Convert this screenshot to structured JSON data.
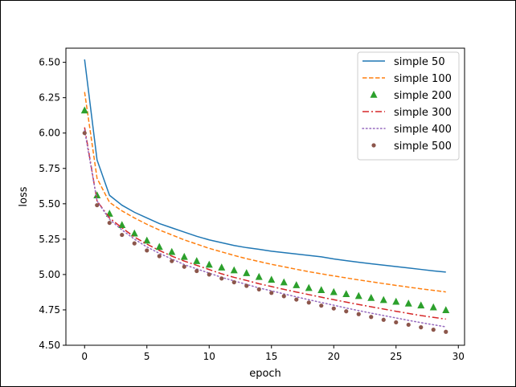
{
  "chart_data": {
    "type": "line",
    "title": "",
    "xlabel": "epoch",
    "ylabel": "loss",
    "xlim": [
      -1.5,
      30.5
    ],
    "ylim": [
      4.5,
      6.6
    ],
    "xticks": [
      0,
      5,
      10,
      15,
      20,
      25,
      30
    ],
    "yticks": [
      4.5,
      4.75,
      5.0,
      5.25,
      5.5,
      5.75,
      6.0,
      6.25,
      6.5
    ],
    "grid": false,
    "legend_placement": "top-right",
    "x": [
      0,
      1,
      2,
      3,
      4,
      5,
      6,
      7,
      8,
      9,
      10,
      11,
      12,
      13,
      14,
      15,
      16,
      17,
      18,
      19,
      20,
      21,
      22,
      23,
      24,
      25,
      26,
      27,
      28,
      29
    ],
    "series": [
      {
        "name": "simple 50",
        "style": "solid",
        "color": "#1f77b4",
        "values": [
          6.52,
          5.81,
          5.56,
          5.49,
          5.44,
          5.4,
          5.36,
          5.33,
          5.3,
          5.27,
          5.245,
          5.225,
          5.205,
          5.19,
          5.178,
          5.165,
          5.155,
          5.145,
          5.135,
          5.125,
          5.11,
          5.098,
          5.087,
          5.076,
          5.066,
          5.056,
          5.046,
          5.036,
          5.026,
          5.017
        ]
      },
      {
        "name": "simple 100",
        "style": "dashed",
        "color": "#ff7f0e",
        "values": [
          6.29,
          5.68,
          5.51,
          5.45,
          5.4,
          5.355,
          5.315,
          5.28,
          5.245,
          5.215,
          5.185,
          5.16,
          5.135,
          5.112,
          5.092,
          5.072,
          5.055,
          5.037,
          5.02,
          5.005,
          4.99,
          4.976,
          4.962,
          4.949,
          4.936,
          4.923,
          4.911,
          4.899,
          4.888,
          4.877
        ]
      },
      {
        "name": "simple 200",
        "style": "triangle",
        "color": "#2ca02c",
        "values": [
          6.16,
          5.56,
          5.43,
          5.35,
          5.29,
          5.24,
          5.195,
          5.16,
          5.125,
          5.095,
          5.07,
          5.05,
          5.03,
          5.01,
          4.983,
          4.963,
          4.945,
          4.925,
          4.905,
          4.89,
          4.876,
          4.862,
          4.848,
          4.835,
          4.82,
          4.808,
          4.795,
          4.782,
          4.768,
          4.748
        ]
      },
      {
        "name": "simple 300",
        "style": "dashdot",
        "color": "#d62728",
        "values": [
          6.04,
          5.52,
          5.4,
          5.33,
          5.265,
          5.215,
          5.17,
          5.13,
          5.095,
          5.065,
          5.035,
          5.005,
          4.98,
          4.958,
          4.935,
          4.915,
          4.895,
          4.876,
          4.858,
          4.84,
          4.822,
          4.805,
          4.788,
          4.772,
          4.756,
          4.74,
          4.725,
          4.71,
          4.697,
          4.685
        ]
      },
      {
        "name": "simple 400",
        "style": "dotted",
        "color": "#9467bd",
        "values": [
          6.02,
          5.52,
          5.39,
          5.315,
          5.25,
          5.195,
          5.15,
          5.11,
          5.07,
          5.04,
          5.01,
          4.98,
          4.955,
          4.93,
          4.905,
          4.885,
          4.863,
          4.842,
          4.822,
          4.802,
          4.783,
          4.763,
          4.745,
          4.727,
          4.71,
          4.693,
          4.676,
          4.66,
          4.645,
          4.63
        ]
      },
      {
        "name": "simple 500",
        "style": "circle",
        "color": "#8c564b",
        "values": [
          6.0,
          5.49,
          5.365,
          5.28,
          5.22,
          5.17,
          5.13,
          5.095,
          5.055,
          5.025,
          5.0,
          4.972,
          4.945,
          4.92,
          4.895,
          4.87,
          4.847,
          4.823,
          4.802,
          4.78,
          4.76,
          4.74,
          4.72,
          4.7,
          4.68,
          4.662,
          4.645,
          4.627,
          4.61,
          4.595
        ]
      }
    ]
  }
}
